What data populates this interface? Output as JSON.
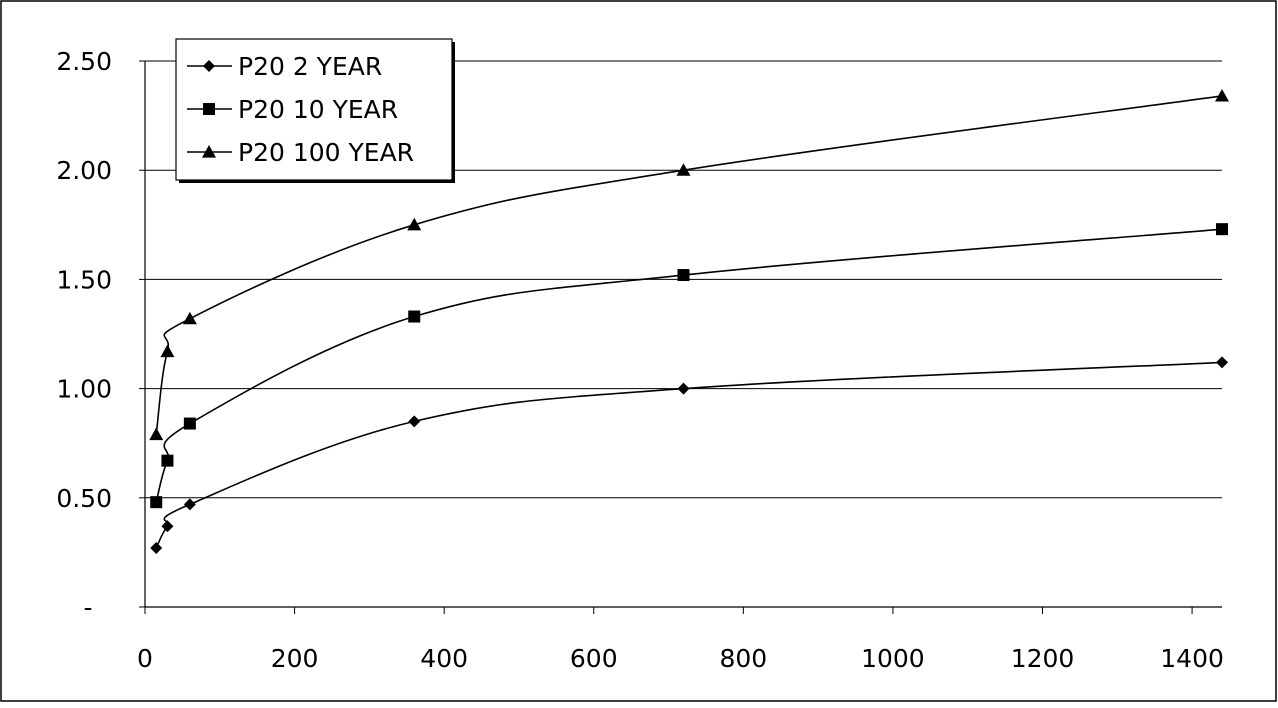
{
  "chart_data": {
    "type": "line",
    "title": "",
    "xlabel": "",
    "ylabel": "",
    "xlim": [
      0,
      1440
    ],
    "ylim": [
      0,
      2.5
    ],
    "x_ticks": [
      0,
      200,
      400,
      600,
      800,
      1000,
      1200,
      1400
    ],
    "x_tick_labels": [
      "0",
      "200",
      "400",
      "600",
      "800",
      "1000",
      "1200",
      "1400"
    ],
    "y_ticks": [
      0,
      0.5,
      1.0,
      1.5,
      2.0,
      2.5
    ],
    "y_tick_labels": [
      "-",
      "0.50",
      "1.00",
      "1.50",
      "2.00",
      "2.50"
    ],
    "grid": "horizontal",
    "legend_position": "top-left",
    "series": [
      {
        "name": "P20 2 YEAR",
        "marker": "diamond",
        "x": [
          15,
          30,
          60,
          360,
          720,
          1440
        ],
        "y": [
          0.27,
          0.37,
          0.47,
          0.85,
          1.0,
          1.12
        ]
      },
      {
        "name": "P20 10 YEAR",
        "marker": "square",
        "x": [
          15,
          30,
          60,
          360,
          720,
          1440
        ],
        "y": [
          0.48,
          0.67,
          0.84,
          1.33,
          1.52,
          1.73
        ]
      },
      {
        "name": "P20 100 YEAR",
        "marker": "triangle",
        "x": [
          15,
          30,
          60,
          360,
          720,
          1440
        ],
        "y": [
          0.79,
          1.17,
          1.32,
          1.75,
          2.0,
          2.34
        ]
      }
    ]
  }
}
